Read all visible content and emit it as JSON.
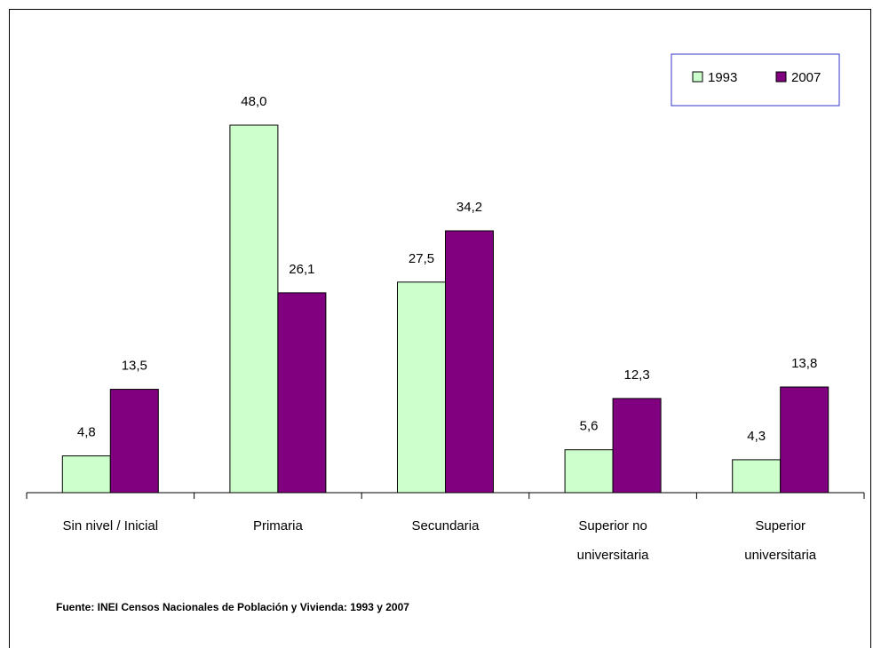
{
  "chart_data": {
    "type": "bar",
    "categories": [
      [
        "Sin nivel / Inicial"
      ],
      [
        "Primaria"
      ],
      [
        "Secundaria"
      ],
      [
        "Superior no",
        "universitaria"
      ],
      [
        "Superior",
        "universitaria"
      ]
    ],
    "series": [
      {
        "name": "1993",
        "values": [
          4.8,
          48.0,
          27.5,
          5.6,
          4.3
        ],
        "labels": [
          "4,8",
          "48,0",
          "27,5",
          "5,6",
          "4,3"
        ],
        "color": "#ccffcc"
      },
      {
        "name": "2007",
        "values": [
          13.5,
          26.1,
          34.2,
          12.3,
          13.8
        ],
        "labels": [
          "13,5",
          "26,1",
          "34,2",
          "12,3",
          "13,8"
        ],
        "color": "#800080"
      }
    ],
    "ylim": [
      0,
      48
    ],
    "grid": false,
    "legend_position": "top-right",
    "legend_border_color": "#3333cc"
  },
  "source_note": "Fuente: INEI Censos Nacionales de Población y Vivienda: 1993 y 2007"
}
